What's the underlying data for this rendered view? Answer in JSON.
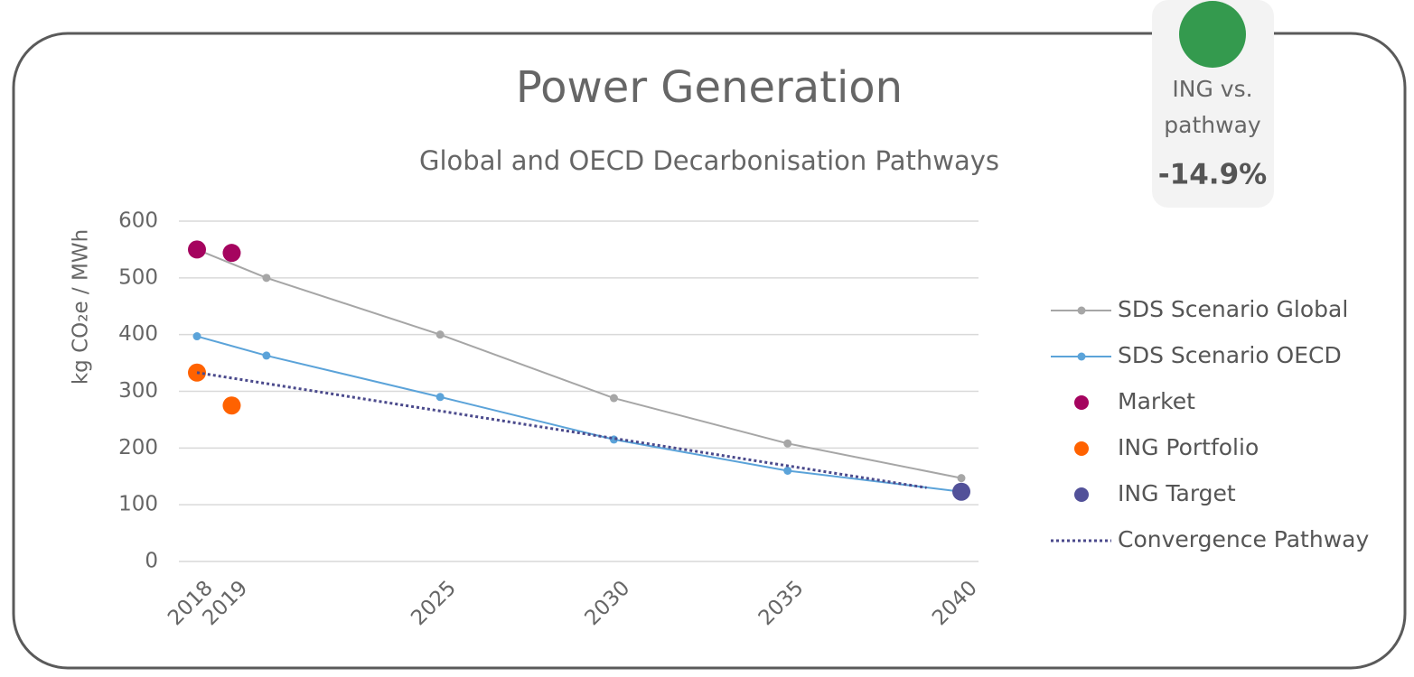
{
  "badge": {
    "lines": [
      "ING vs.",
      "pathway"
    ],
    "value": "-14.9%",
    "color": "#349a4e"
  },
  "chart_data": {
    "type": "line",
    "title": "Power Generation",
    "subtitle": "Global and OECD Decarbonisation Pathways",
    "y_label": "kg CO₂e / MWh",
    "xlim": [
      2018,
      2040
    ],
    "xticks": [
      2018,
      2019,
      2025,
      2030,
      2035,
      2040
    ],
    "ylim": [
      0,
      600
    ],
    "yticks": [
      0,
      100,
      200,
      300,
      400,
      500,
      600
    ],
    "grid": true,
    "legend": "right",
    "series": [
      {
        "name": "SDS Scenario Global",
        "color": "#a6a6a6",
        "style": "line-marker",
        "x": [
          2018,
          2020,
          2025,
          2030,
          2035,
          2040
        ],
        "values": [
          550,
          500,
          400,
          288,
          208,
          147
        ]
      },
      {
        "name": "SDS Scenario OECD",
        "color": "#5ba3d9",
        "style": "line-marker",
        "x": [
          2018,
          2020,
          2025,
          2030,
          2035,
          2040
        ],
        "values": [
          397,
          363,
          290,
          215,
          160,
          123
        ]
      },
      {
        "name": "Market",
        "color": "#a5045f",
        "style": "marker",
        "x": [
          2018,
          2019
        ],
        "values": [
          550,
          544
        ]
      },
      {
        "name": "ING Portfolio",
        "color": "#ff6200",
        "style": "marker",
        "x": [
          2018,
          2019
        ],
        "values": [
          333,
          275
        ]
      },
      {
        "name": "ING Target",
        "color": "#525199",
        "style": "marker",
        "x": [
          2040
        ],
        "values": [
          123
        ]
      },
      {
        "name": "Convergence Pathway",
        "color": "#4b4a8c",
        "style": "dotted",
        "x": [
          2018,
          2039
        ],
        "values": [
          333,
          130
        ]
      }
    ]
  }
}
